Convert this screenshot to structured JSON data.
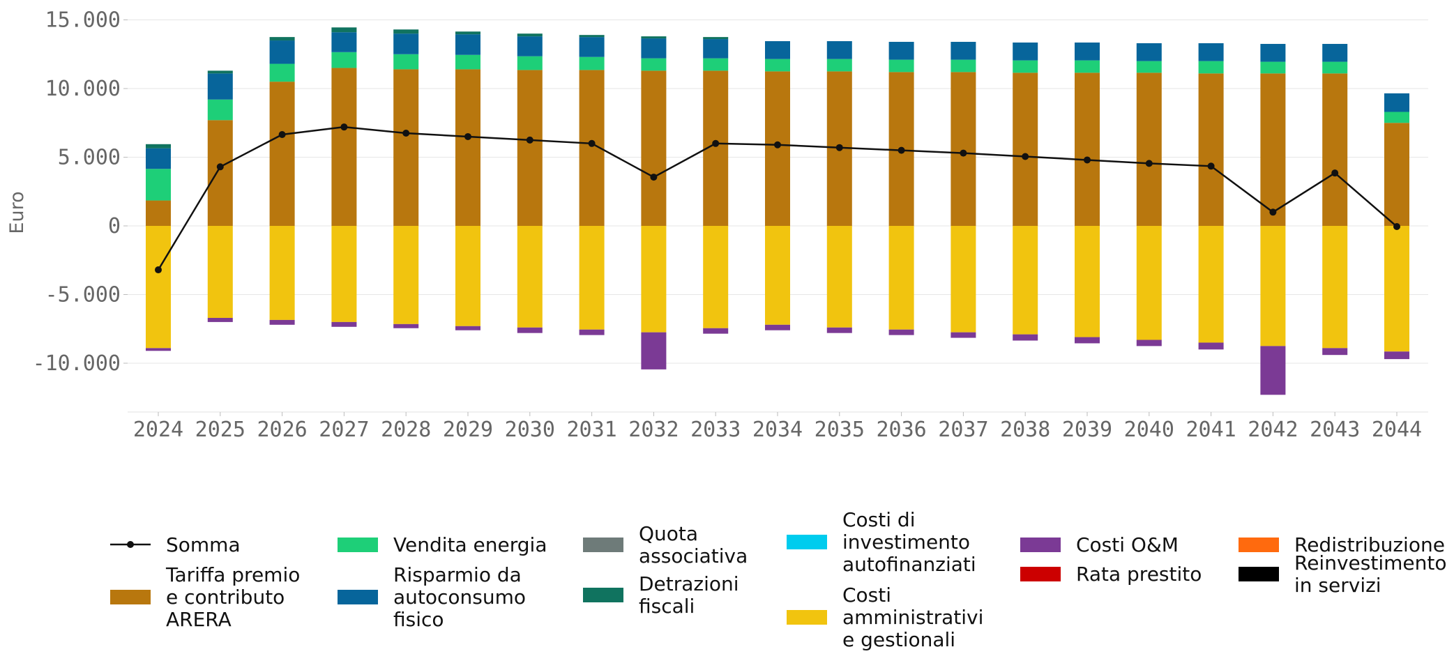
{
  "chart_data": {
    "type": "bar",
    "stacked": true,
    "title": "",
    "xlabel": "",
    "ylabel": "Euro",
    "ylim": [
      -13500,
      15000
    ],
    "yticks": [
      {
        "value": 15000,
        "label": "15.000"
      },
      {
        "value": 10000,
        "label": "10.000"
      },
      {
        "value": 5000,
        "label": "5.000"
      },
      {
        "value": 0,
        "label": "0"
      },
      {
        "value": -5000,
        "label": "-5.000"
      },
      {
        "value": -10000,
        "label": "-10.000"
      }
    ],
    "grid": "horizontal",
    "legend_position": "bottom",
    "categories": [
      "2024",
      "2025",
      "2026",
      "2027",
      "2028",
      "2029",
      "2030",
      "2031",
      "2032",
      "2033",
      "2034",
      "2035",
      "2036",
      "2037",
      "2038",
      "2039",
      "2040",
      "2041",
      "2042",
      "2043",
      "2044"
    ],
    "series": [
      {
        "name": "Tariffa premio e contributo ARERA",
        "color": "#B8770E",
        "values": [
          1850,
          7700,
          10500,
          11500,
          11400,
          11400,
          11350,
          11350,
          11300,
          11300,
          11250,
          11250,
          11200,
          11200,
          11150,
          11150,
          11150,
          11100,
          11100,
          11100,
          7500
        ]
      },
      {
        "name": "Vendita energia",
        "color": "#1ECF78",
        "values": [
          2300,
          1500,
          1300,
          1150,
          1100,
          1050,
          1000,
          950,
          900,
          900,
          900,
          900,
          900,
          900,
          900,
          900,
          850,
          900,
          850,
          850,
          800
        ]
      },
      {
        "name": "Risparmio da autoconsumo fisico",
        "color": "#07659B",
        "values": [
          1500,
          1900,
          1700,
          1450,
          1500,
          1500,
          1450,
          1450,
          1450,
          1400,
          1300,
          1300,
          1300,
          1300,
          1300,
          1300,
          1300,
          1300,
          1300,
          1300,
          1350
        ]
      },
      {
        "name": "Quota associativa",
        "color": "#6E7B79",
        "values": [
          0,
          0,
          0,
          0,
          0,
          0,
          0,
          0,
          0,
          0,
          0,
          0,
          0,
          0,
          0,
          0,
          0,
          0,
          0,
          0,
          0
        ]
      },
      {
        "name": "Detrazioni fiscali",
        "color": "#10735F",
        "values": [
          300,
          200,
          250,
          350,
          300,
          200,
          200,
          150,
          150,
          150,
          0,
          0,
          0,
          0,
          0,
          0,
          0,
          0,
          0,
          0,
          0
        ]
      },
      {
        "name": "Costi di investimento autofinanziati",
        "color": "#00CCEE",
        "values": [
          0,
          0,
          0,
          0,
          0,
          0,
          0,
          0,
          0,
          0,
          0,
          0,
          0,
          0,
          0,
          0,
          0,
          0,
          0,
          0,
          0
        ]
      },
      {
        "name": "Costi amministrativi e gestionali",
        "color": "#F1C40F",
        "values": [
          -8900,
          -6700,
          -6850,
          -7000,
          -7150,
          -7300,
          -7400,
          -7550,
          -7750,
          -7450,
          -7200,
          -7400,
          -7550,
          -7750,
          -7900,
          -8100,
          -8300,
          -8500,
          -8750,
          -8900,
          -9150
        ]
      },
      {
        "name": "Costi O&M",
        "color": "#7B3A95",
        "values": [
          -200,
          -300,
          -350,
          -350,
          -300,
          -300,
          -400,
          -400,
          -2700,
          -400,
          -400,
          -400,
          -400,
          -400,
          -450,
          -450,
          -450,
          -500,
          -3550,
          -500,
          -550
        ]
      },
      {
        "name": "Rata prestito",
        "color": "#CC0000",
        "values": [
          0,
          0,
          0,
          0,
          0,
          0,
          0,
          0,
          0,
          0,
          0,
          0,
          0,
          0,
          0,
          0,
          0,
          0,
          0,
          0,
          0
        ]
      },
      {
        "name": "Redistribuzione",
        "color": "#FF6A0E",
        "values": [
          0,
          0,
          0,
          0,
          0,
          0,
          0,
          0,
          0,
          0,
          0,
          0,
          0,
          0,
          0,
          0,
          0,
          0,
          0,
          0,
          0
        ]
      },
      {
        "name": "Reinvestimento in servizi",
        "color": "#000000",
        "values": [
          0,
          0,
          0,
          0,
          0,
          0,
          0,
          0,
          0,
          0,
          0,
          0,
          0,
          0,
          0,
          0,
          0,
          0,
          0,
          0,
          0
        ]
      }
    ],
    "line": {
      "name": "Somma",
      "color": "#111111",
      "values": [
        -3200,
        4300,
        6650,
        7200,
        6750,
        6500,
        6250,
        6000,
        3550,
        6000,
        5900,
        5700,
        5500,
        5300,
        5050,
        4800,
        4550,
        4350,
        1000,
        3850,
        -50
      ]
    },
    "legend_items": [
      {
        "kind": "line",
        "label": "Somma",
        "color": "#111111"
      },
      {
        "kind": "patch",
        "label": "Tariffa premio\ne contributo\nARERA",
        "color": "#B8770E"
      },
      {
        "kind": "patch",
        "label": "Vendita energia",
        "color": "#1ECF78"
      },
      {
        "kind": "patch",
        "label": "Risparmio da\nautoconsumo\nfisico",
        "color": "#07659B"
      },
      {
        "kind": "patch",
        "label": "Quota\nassociativa",
        "color": "#6E7B79"
      },
      {
        "kind": "patch",
        "label": "Detrazioni\nfiscali",
        "color": "#10735F"
      },
      {
        "kind": "patch",
        "label": "Costi di\ninvestimento\nautofinanziati",
        "color": "#00CCEE"
      },
      {
        "kind": "patch",
        "label": "Costi\namministrativi\ne gestionali",
        "color": "#F1C40F"
      },
      {
        "kind": "patch",
        "label": "Costi O&M",
        "color": "#7B3A95"
      },
      {
        "kind": "patch",
        "label": "Rata prestito",
        "color": "#CC0000"
      },
      {
        "kind": "patch",
        "label": "Redistribuzione",
        "color": "#FF6A0E"
      },
      {
        "kind": "patch",
        "label": "Reinvestimento\nin servizi",
        "color": "#000000"
      }
    ]
  }
}
